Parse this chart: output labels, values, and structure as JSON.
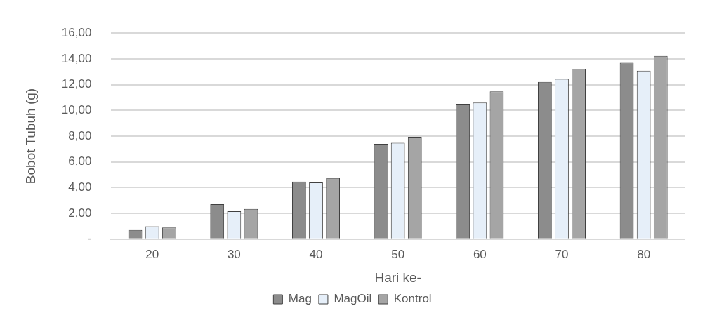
{
  "chart_data": {
    "type": "bar",
    "xlabel": "Hari ke-",
    "ylabel": "Bobot Tubuh (g)",
    "categories": [
      "20",
      "30",
      "40",
      "50",
      "60",
      "70",
      "80"
    ],
    "series": [
      {
        "name": "Mag",
        "color": "#8c8c8c",
        "values": [
          0.71,
          2.72,
          4.47,
          7.4,
          10.51,
          12.21,
          13.7
        ]
      },
      {
        "name": "MagOil",
        "color": "#e6eff9",
        "values": [
          1.0,
          2.17,
          4.41,
          7.48,
          10.6,
          12.44,
          13.08
        ]
      },
      {
        "name": "Kontrol",
        "color": "#a5a5a5",
        "values": [
          0.9,
          2.34,
          4.75,
          7.95,
          11.47,
          13.23,
          14.22
        ]
      }
    ],
    "ylim": [
      0,
      16
    ],
    "yticks": [
      {
        "value": 0,
        "label": "-"
      },
      {
        "value": 2,
        "label": "2,00"
      },
      {
        "value": 4,
        "label": "4,00"
      },
      {
        "value": 6,
        "label": "6,00"
      },
      {
        "value": 8,
        "label": "8,00"
      },
      {
        "value": 10,
        "label": "10,00"
      },
      {
        "value": 12,
        "label": "12,00"
      },
      {
        "value": 14,
        "label": "14,00"
      },
      {
        "value": 16,
        "label": "16,00"
      }
    ],
    "grid": "y",
    "legend": "bottom"
  }
}
